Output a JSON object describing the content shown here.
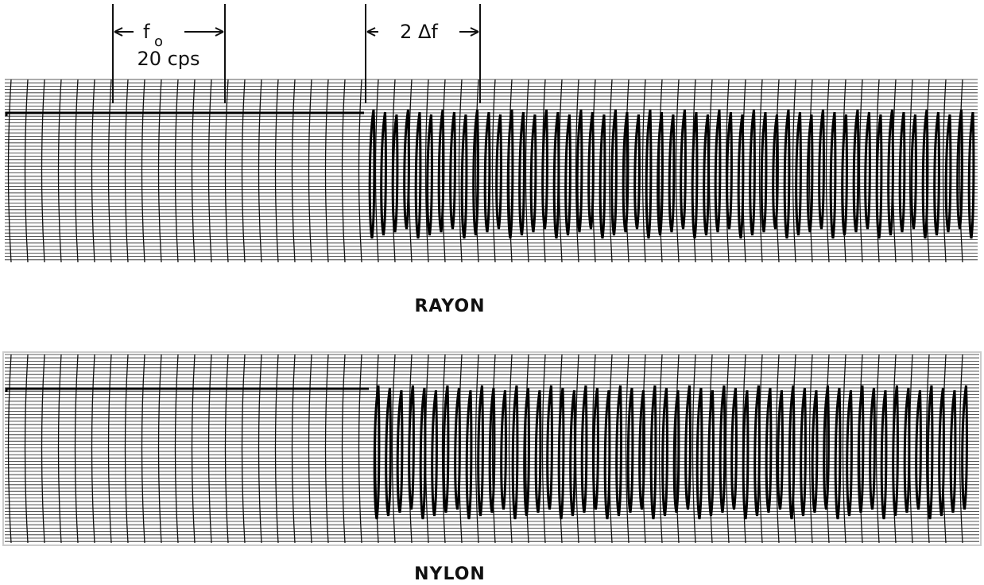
{
  "annotations": {
    "f0": {
      "symbol": "f",
      "subscript": "o"
    },
    "f0_value": "20 cps",
    "deviation": "2 Δf"
  },
  "panels": [
    {
      "label": "RAYON"
    },
    {
      "label": "NYLON"
    }
  ]
}
